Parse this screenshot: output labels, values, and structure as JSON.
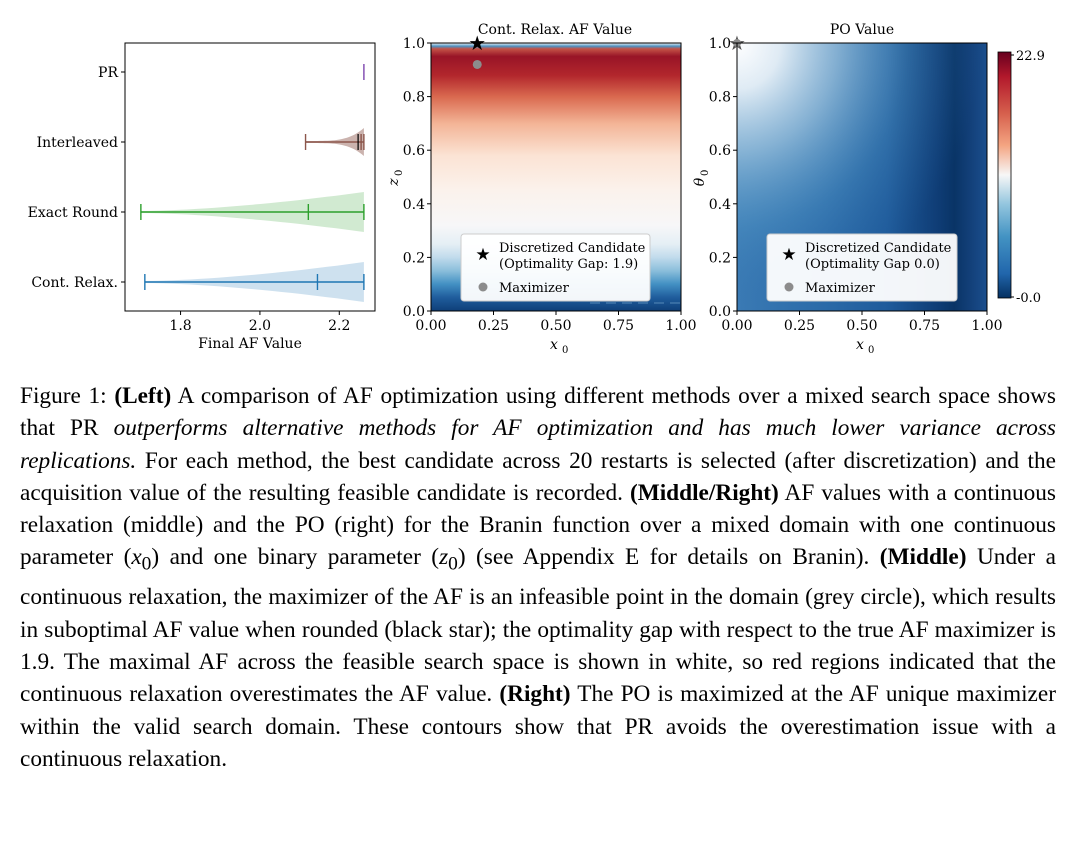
{
  "chart_data": [
    {
      "type": "violin",
      "xlabel": "Final AF Value",
      "xlim": [
        1.66,
        2.29
      ],
      "xticks": [
        "1.8",
        "2.0",
        "2.2"
      ],
      "xtick_values": [
        1.8,
        2.0,
        2.2
      ],
      "methods": [
        {
          "name": "PR",
          "color": "#9467bd",
          "min": 2.262,
          "max": 2.262,
          "mean": 2.262,
          "median": 2.262,
          "mode": 2.262
        },
        {
          "name": "Interleaved",
          "color": "#8c564b",
          "min": 2.115,
          "max": 2.262,
          "mean": 2.255,
          "median": 2.262,
          "mode": 2.262
        },
        {
          "name": "Exact Round",
          "color": "#2ca02c",
          "min": 1.7,
          "max": 2.262,
          "mean": 2.122,
          "median": 2.262,
          "mode": 2.262
        },
        {
          "name": "Cont. Relax.",
          "color": "#1f77b4",
          "min": 1.71,
          "max": 2.262,
          "mean": 2.145,
          "median": 2.262,
          "mode": 2.262
        }
      ]
    },
    {
      "type": "heatmap",
      "title": "Cont. Relax. AF Value",
      "xlabel": "x",
      "xlabel_sub": "0",
      "ylabel": "z",
      "ylabel_sub": "0",
      "xlim": [
        0,
        1
      ],
      "ylim": [
        0,
        1
      ],
      "xticks": [
        "0.00",
        "0.25",
        "0.50",
        "0.75",
        "1.00"
      ],
      "yticks": [
        "0.0",
        "0.2",
        "0.4",
        "0.6",
        "0.8",
        "1.0"
      ],
      "colormap": "RdBu_r",
      "legend": [
        {
          "marker": "star",
          "line1": "Discretized Candidate",
          "line2": "(Optimality Gap: 1.9)"
        },
        {
          "marker": "circle",
          "line1": "Maximizer"
        }
      ],
      "points": {
        "discretized_candidate": [
          0.185,
          1.0
        ],
        "maximizer": [
          0.185,
          0.92
        ]
      }
    },
    {
      "type": "heatmap",
      "title": "PO Value",
      "xlabel": "x",
      "xlabel_sub": "0",
      "ylabel": "θ",
      "ylabel_sub": "0",
      "xlim": [
        0,
        1
      ],
      "ylim": [
        0,
        1
      ],
      "xticks": [
        "0.00",
        "0.25",
        "0.50",
        "0.75",
        "1.00"
      ],
      "yticks": [
        "0.0",
        "0.2",
        "0.4",
        "0.6",
        "0.8",
        "1.0"
      ],
      "colormap": "RdBu_r",
      "colorbar_ticks": [
        "22.9",
        "-0.0"
      ],
      "colorbar_range": [
        -0.0,
        22.9
      ],
      "legend": [
        {
          "marker": "star",
          "line1": "Discretized Candidate",
          "line2": "(Optimality Gap 0.0)"
        },
        {
          "marker": "circle",
          "line1": "Maximizer"
        }
      ],
      "points": {
        "discretized_candidate": [
          0.0,
          1.0
        ],
        "maximizer": [
          0.0,
          1.0
        ]
      }
    }
  ],
  "caption": {
    "label": "Figure 1:",
    "left_tag": "(Left)",
    "t1": " A comparison of AF optimization using different methods over a mixed search space shows that PR ",
    "emph": "outperforms alternative methods for AF optimization and has much lower variance across replications.",
    "t2": " For each method, the best candidate across 20 restarts is selected (after discretization) and the acquisition value of the resulting feasible candidate is recorded. ",
    "midright_tag": "(Middle/Right)",
    "t3": " AF values with a continuous relaxation (middle) and the PO (right) for the Branin function over a mixed domain with one continuous parameter (",
    "x0": "x",
    "x0_sub": "0",
    "t4": ") and one binary parameter (",
    "z0": "z",
    "z0_sub": "0",
    "t5": ") (see Appendix E for details on Branin). ",
    "middle_tag": "(Middle)",
    "t6": " Under a continuous relaxation, the maximizer of the AF is an infeasible point in the domain (grey circle), which results in suboptimal AF value when rounded (black star); the optimality gap with respect to the true AF maximizer is 1.9.  The maximal AF across the feasible search space is shown in white, so red regions indicated that the continuous relaxation overestimates the AF value. ",
    "right_tag": "(Right)",
    "t7": " The PO is maximized at the AF unique maximizer within the valid search domain. These contours show that PR avoids the overestimation issue with a continuous relaxation."
  }
}
